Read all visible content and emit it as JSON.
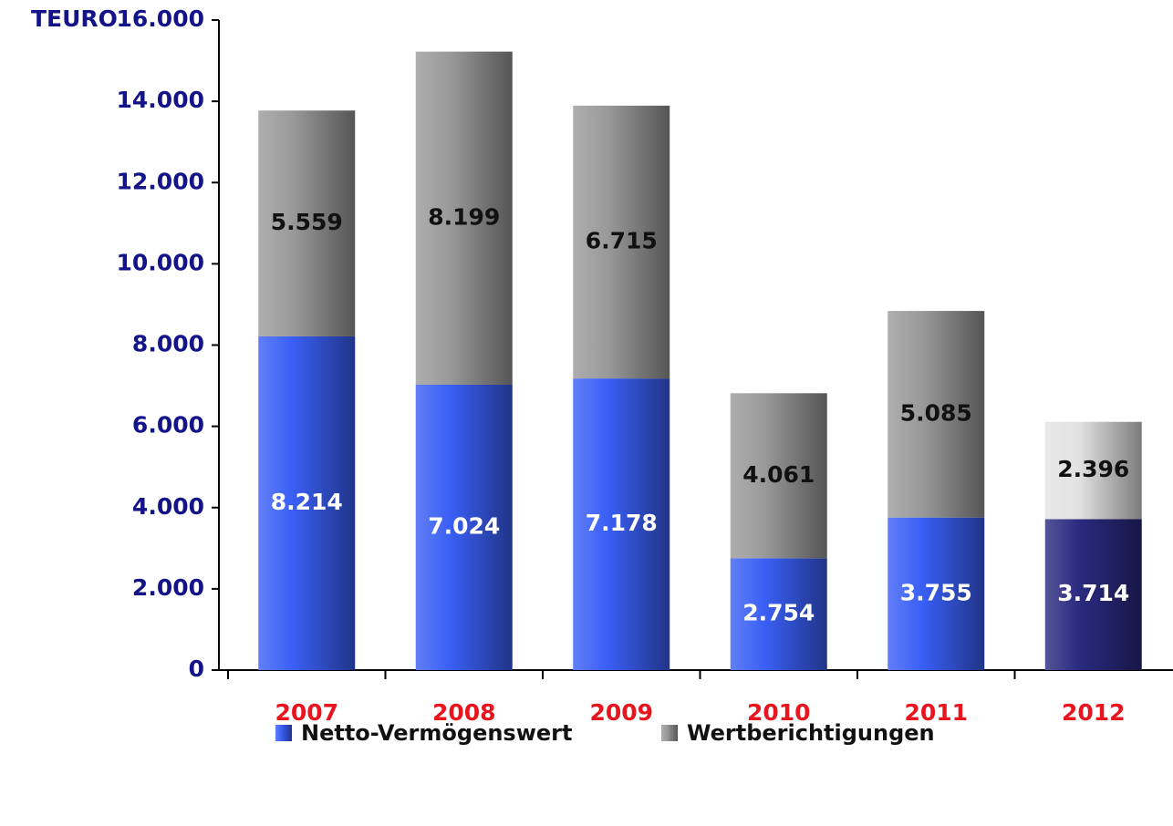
{
  "chart_data": {
    "type": "stacked_bar",
    "ylabel": "TEURO",
    "categories": [
      "2007",
      "2008",
      "2009",
      "2010",
      "2011",
      "2012"
    ],
    "series": [
      {
        "name": "Netto-Vermögenswert",
        "color": "#3a5ff5",
        "colors": [
          "#3a5ff5",
          "#3a5ff5",
          "#3a5ff5",
          "#3a5ff5",
          "#3a5ff5",
          "#2a2a80"
        ],
        "values": [
          8214,
          7024,
          7178,
          2754,
          3755,
          3714
        ],
        "value_labels": [
          "8.214",
          "7.024",
          "7.178",
          "2.754",
          "3.755",
          "3.714"
        ]
      },
      {
        "name": "Wertberichtigungen",
        "color": "#9a9a9a",
        "colors": [
          "#9a9a9a",
          "#9a9a9a",
          "#9a9a9a",
          "#9a9a9a",
          "#9a9a9a",
          "#e2e2e2"
        ],
        "values": [
          5559,
          8199,
          6715,
          4061,
          5085,
          2396
        ],
        "value_labels": [
          "5.559",
          "8.199",
          "6.715",
          "4.061",
          "5.085",
          "2.396"
        ]
      }
    ],
    "ylim": [
      0,
      16000
    ],
    "yticks": [
      0,
      {
        "value": 2000,
        "label": "2.000"
      },
      {
        "value": 4000,
        "label": "4.000"
      },
      {
        "value": 6000,
        "label": "6.000"
      },
      {
        "value": 8000,
        "label": "8.000"
      },
      {
        "value": 10000,
        "label": "10.000"
      },
      {
        "value": 12000,
        "label": "12.000"
      },
      {
        "value": 14000,
        "label": "14.000"
      },
      {
        "value": 16000,
        "label": "16.000"
      }
    ],
    "legend": "bottom"
  }
}
